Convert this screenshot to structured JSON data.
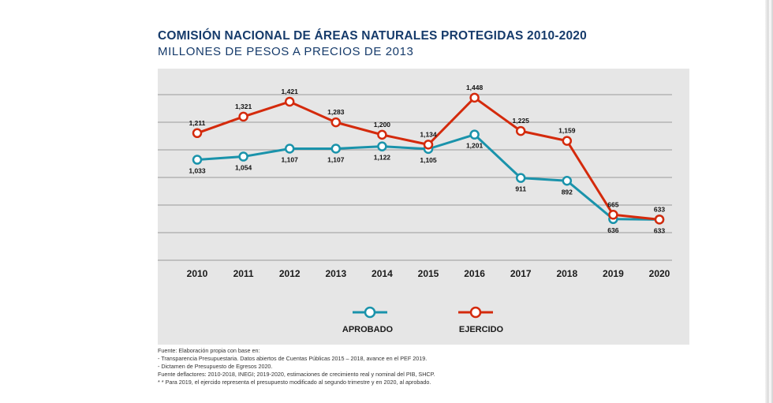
{
  "title": "COMISIÓN NACIONAL DE ÁREAS NATURALES PROTEGIDAS 2010-2020",
  "subtitle": "MILLONES DE PESOS A PRECIOS DE 2013",
  "colors": {
    "aprobado": "#1a93ab",
    "ejercido": "#d42a0c",
    "title": "#163b6b",
    "panel": "#e6e6e6",
    "grid": "#9a9a9a"
  },
  "chart_data": {
    "type": "line",
    "title": "COMISIÓN NACIONAL DE ÁREAS NATURALES PROTEGIDAS 2010-2020",
    "subtitle": "MILLONES DE PESOS A PRECIOS DE 2013",
    "categories": [
      "2010",
      "2011",
      "2012",
      "2013",
      "2014",
      "2015",
      "2016",
      "2017",
      "2018",
      "2019",
      "2020"
    ],
    "series": [
      {
        "name": "APROBADO",
        "color": "#1a93ab",
        "values": [
          1033,
          1054,
          1107,
          1107,
          1122,
          1105,
          1201,
          911,
          892,
          636,
          633
        ],
        "labels": [
          "1,033",
          "1,054",
          "1,107",
          "1,107",
          "1,122",
          "1,105",
          "1,201",
          "911",
          "892",
          "636",
          "633"
        ]
      },
      {
        "name": "EJERCIDO",
        "color": "#d42a0c",
        "values": [
          1211,
          1321,
          1421,
          1283,
          1200,
          1134,
          1448,
          1225,
          1159,
          665,
          633
        ],
        "labels": [
          "1,211",
          "1,321",
          "1,421",
          "1,283",
          "1,200",
          "1,134",
          "1,448",
          "1,225",
          "1,159",
          "665",
          "633"
        ]
      }
    ],
    "grid": true,
    "legend_position": "bottom",
    "xlabel": "",
    "ylabel": ""
  },
  "footer": {
    "lines": [
      "Fuente: Elaboración propia con base en:",
      "- Transparencia Presupuestaria. Datos abiertos de Cuentas Públicas 2015 – 2018, avance en el PEF 2019.",
      "- Dictamen de Presupuesto de Egresos 2020.",
      "Fuente deflactores: 2010-2018, INEGI; 2019-2020, estimaciones de crecimiento real y nominal del PIB, SHCP.",
      "* * Para 2019, el ejercido representa el presupuesto modificado al segundo trimestre y en 2020, al aprobado."
    ]
  }
}
